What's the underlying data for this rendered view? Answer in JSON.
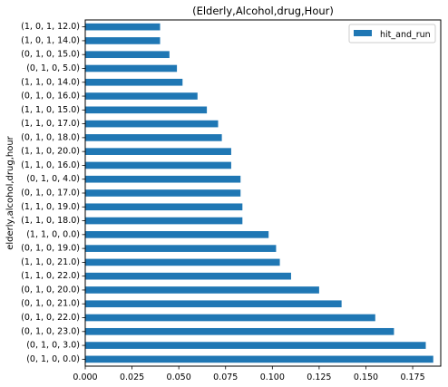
{
  "chart_data": {
    "type": "bar",
    "orientation": "horizontal",
    "title": "(Elderly,Alcohol,drug,Hour)",
    "xlabel": "",
    "ylabel": "elderly,alcohol,drug,hour",
    "xlim": [
      0,
      0.19
    ],
    "xticks": [
      "0.000",
      "0.025",
      "0.050",
      "0.075",
      "0.100",
      "0.125",
      "0.150",
      "0.175"
    ],
    "grid": false,
    "legend_position": "top-right",
    "color": "#1f77b4",
    "categories": [
      "(0, 1, 0, 0.0)",
      "(0, 1, 0, 3.0)",
      "(0, 1, 0, 23.0)",
      "(0, 1, 0, 22.0)",
      "(0, 1, 0, 21.0)",
      "(0, 1, 0, 20.0)",
      "(1, 1, 0, 22.0)",
      "(1, 1, 0, 21.0)",
      "(0, 1, 0, 19.0)",
      "(1, 1, 0, 0.0)",
      "(1, 1, 0, 18.0)",
      "(1, 1, 0, 19.0)",
      "(0, 1, 0, 17.0)",
      "(0, 1, 0, 4.0)",
      "(1, 1, 0, 16.0)",
      "(1, 1, 0, 20.0)",
      "(0, 1, 0, 18.0)",
      "(1, 1, 0, 17.0)",
      "(1, 1, 0, 15.0)",
      "(0, 1, 0, 16.0)",
      "(1, 1, 0, 14.0)",
      "(0, 1, 0, 5.0)",
      "(0, 1, 0, 15.0)",
      "(1, 0, 1, 14.0)",
      "(1, 0, 1, 12.0)"
    ],
    "series": [
      {
        "name": "hit_and_run",
        "values": [
          0.186,
          0.182,
          0.165,
          0.155,
          0.137,
          0.125,
          0.11,
          0.104,
          0.102,
          0.098,
          0.084,
          0.084,
          0.083,
          0.083,
          0.078,
          0.078,
          0.073,
          0.071,
          0.065,
          0.06,
          0.052,
          0.049,
          0.045,
          0.04,
          0.04
        ]
      }
    ]
  }
}
